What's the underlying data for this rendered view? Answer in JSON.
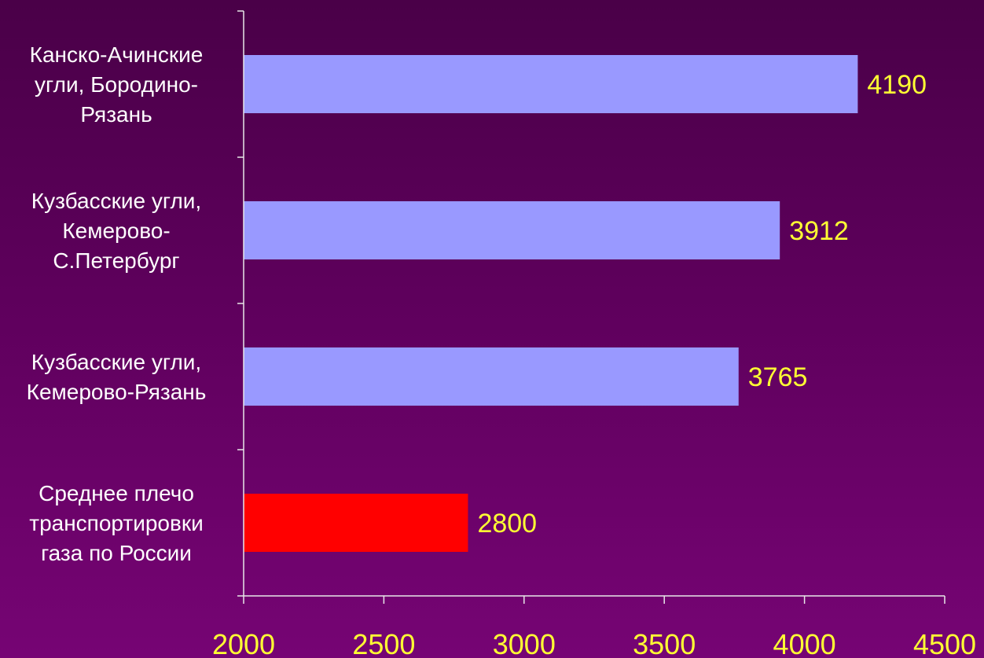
{
  "chart_data": {
    "type": "bar",
    "orientation": "horizontal",
    "categories": [
      [
        "Канско-Ачинские",
        "угли, Бородино-",
        "Рязань"
      ],
      [
        "Кузбасские угли,",
        "Кемерово-",
        "С.Петербург"
      ],
      [
        "Кузбасские угли,",
        "Кемерово-Рязань"
      ],
      [
        "Среднее плечо",
        "транспортировки",
        "газа по России"
      ]
    ],
    "values": [
      4190,
      3912,
      3765,
      2800
    ],
    "bar_colors": [
      "#9999ff",
      "#9999ff",
      "#9999ff",
      "#ff0000"
    ],
    "xlim": [
      2000,
      4500
    ],
    "xticks": [
      2000,
      2500,
      3000,
      3500,
      4000,
      4500
    ],
    "title": "",
    "xlabel": "",
    "ylabel": "",
    "grid": false,
    "legend": "none"
  },
  "colors": {
    "label_text": "#ffffff",
    "value_text": "#ffff33",
    "axis": "#e8e8e8"
  }
}
